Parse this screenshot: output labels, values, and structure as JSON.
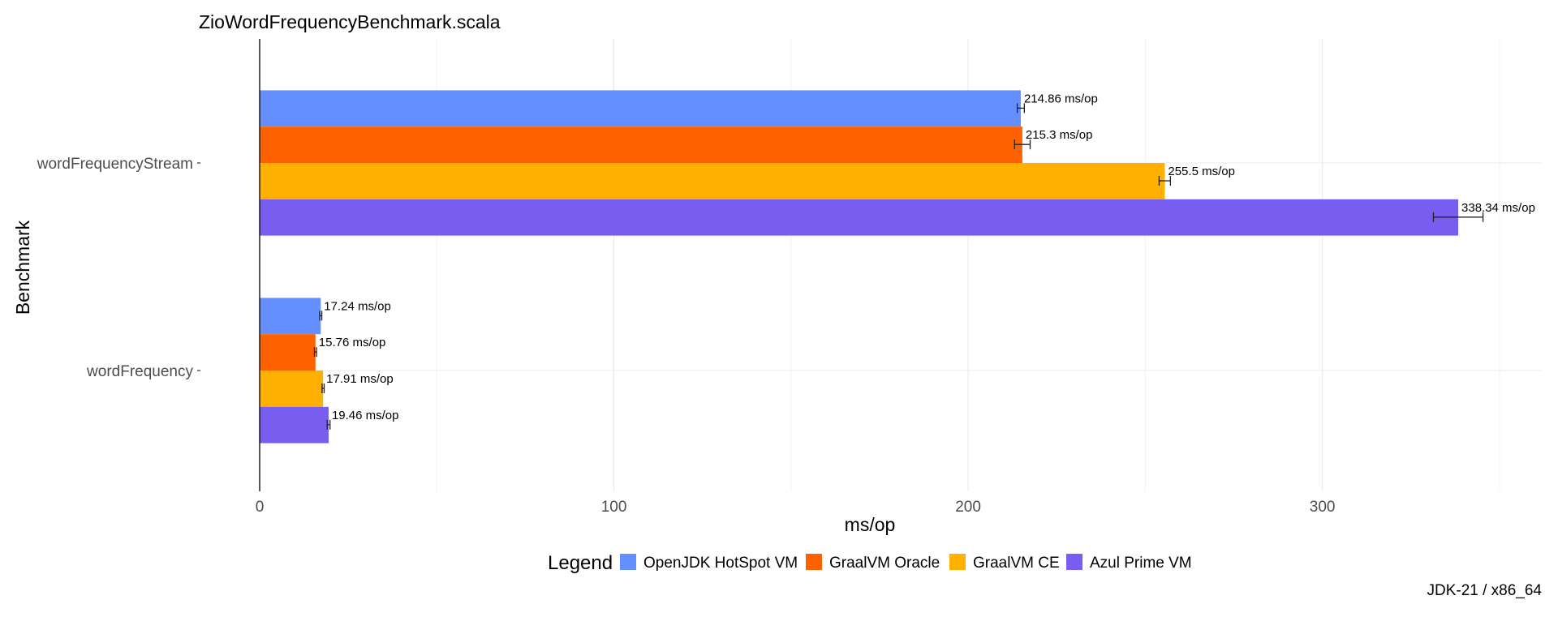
{
  "chart_data": {
    "type": "bar",
    "orientation": "horizontal",
    "title": "ZioWordFrequencyBenchmark.scala",
    "xlabel": "ms/op",
    "ylabel": "Benchmark",
    "xlim": [
      0,
      360
    ],
    "xticks": [
      0,
      100,
      200,
      300
    ],
    "grid": true,
    "categories": [
      "wordFrequencyStream",
      "wordFrequency"
    ],
    "series": [
      {
        "name": "OpenJDK HotSpot VM",
        "color": "#648FFF",
        "values": [
          214.86,
          17.24
        ],
        "errors": [
          1.0,
          0.3
        ],
        "labels": [
          "214.86 ms/op",
          "17.24 ms/op"
        ]
      },
      {
        "name": "GraalVM Oracle",
        "color": "#FE6100",
        "values": [
          215.3,
          15.76
        ],
        "errors": [
          2.2,
          0.3
        ],
        "labels": [
          "215.3 ms/op",
          "15.76 ms/op"
        ]
      },
      {
        "name": "GraalVM CE",
        "color": "#FFB000",
        "values": [
          255.5,
          17.91
        ],
        "errors": [
          1.6,
          0.3
        ],
        "labels": [
          "255.5 ms/op",
          "17.91 ms/op"
        ]
      },
      {
        "name": "Azul Prime VM",
        "color": "#785EF0",
        "values": [
          338.34,
          19.46
        ],
        "errors": [
          7.0,
          0.4
        ],
        "labels": [
          "338.34 ms/op",
          "19.46 ms/op"
        ]
      }
    ],
    "legend": {
      "title": "Legend",
      "position": "bottom"
    },
    "caption": "JDK-21 / x86_64"
  }
}
